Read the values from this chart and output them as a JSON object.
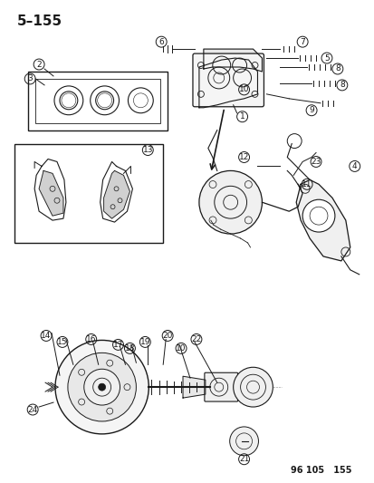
{
  "title_top_left": "5–155",
  "footer_text": "96 105   155",
  "bg_color": "#ffffff",
  "line_color": "#1a1a1a",
  "text_color": "#1a1a1a",
  "title_fontsize": 11,
  "label_fontsize": 7.5,
  "footer_fontsize": 7,
  "fig_width": 4.14,
  "fig_height": 5.33,
  "dpi": 100
}
